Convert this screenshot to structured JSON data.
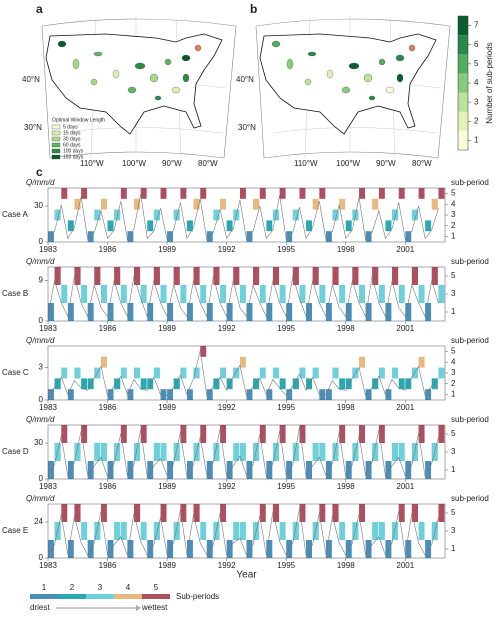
{
  "panel_labels": [
    "a",
    "b",
    "c"
  ],
  "map_lat_labels": [
    "40°N",
    "30°N"
  ],
  "map_lon_labels": [
    "110°W",
    "100°W",
    "90°W",
    "80°W"
  ],
  "map_legend": {
    "title": "Optimal Window Length",
    "items": [
      {
        "label": "5 days",
        "color": "#f7f9d8"
      },
      {
        "label": "15 days",
        "color": "#d9efb0"
      },
      {
        "label": "30 days",
        "color": "#a6d98a"
      },
      {
        "label": "60 days",
        "color": "#5fb65e"
      },
      {
        "label": "100 days",
        "color": "#2b8a45"
      },
      {
        "label": "150 days",
        "color": "#0b5a2c"
      }
    ]
  },
  "colorbar": {
    "title": "Number of sub-periods",
    "ticks": [
      1,
      2,
      3,
      4,
      5,
      6,
      7
    ],
    "colors": [
      "#fbfcd9",
      "#e2f2b4",
      "#b9e29a",
      "#86cb7c",
      "#52ad5f",
      "#25894a",
      "#0a5f31"
    ]
  },
  "subperiod_legend": {
    "title": "Sub-periods",
    "low": "driest",
    "high": "wettest",
    "items": [
      {
        "label": "1",
        "color": "#4a8fba"
      },
      {
        "label": "2",
        "color": "#2aa8b2"
      },
      {
        "label": "3",
        "color": "#6dd0da"
      },
      {
        "label": "4",
        "color": "#e7b97e"
      },
      {
        "label": "5",
        "color": "#ad4f5f"
      }
    ]
  },
  "x_label": "Year",
  "chart_data": [
    {
      "type": "subperiod",
      "name": "Case A",
      "y_label": "Q/mm/d",
      "y2_label": "sub-period",
      "xlim": [
        1983,
        2003
      ],
      "xticks": [
        1983,
        1986,
        1989,
        1992,
        1995,
        1998,
        2001
      ],
      "ylim": [
        0,
        45
      ],
      "yticks": [
        0,
        30
      ],
      "y2lim": [
        0.5,
        5.5
      ],
      "y2ticks": [
        1,
        2,
        3,
        4,
        5
      ],
      "x": [
        1983,
        1983.33,
        1983.67,
        1984,
        1984.33,
        1984.67,
        1985,
        1985.33,
        1985.67,
        1986,
        1986.33,
        1986.67,
        1987,
        1987.33,
        1987.67,
        1988,
        1988.33,
        1988.67,
        1989,
        1989.33,
        1989.67,
        1990,
        1990.33,
        1990.67,
        1991,
        1991.33,
        1991.67,
        1992,
        1992.33,
        1992.67,
        1993,
        1993.33,
        1993.67,
        1994,
        1994.33,
        1994.67,
        1995,
        1995.33,
        1995.67,
        1996,
        1996.33,
        1996.67,
        1997,
        1997.33,
        1997.67,
        1998,
        1998.33,
        1998.67,
        1999,
        1999.33,
        1999.67,
        2000,
        2000.33,
        2000.67,
        2001,
        2001.33,
        2001.67,
        2002,
        2002.33,
        2002.67
      ],
      "subperiods": [
        1,
        3,
        5,
        2,
        4,
        5,
        1,
        3,
        4,
        2,
        3,
        5,
        1,
        4,
        5,
        2,
        3,
        5,
        1,
        3,
        5,
        2,
        4,
        5,
        1,
        3,
        4,
        2,
        3,
        5,
        1,
        4,
        5,
        2,
        3,
        5,
        1,
        3,
        5,
        2,
        4,
        5,
        1,
        3,
        4,
        2,
        3,
        5,
        1,
        4,
        5,
        2,
        3,
        5,
        1,
        3,
        5,
        2,
        4,
        5
      ],
      "flow": [
        2,
        9,
        31,
        3,
        12,
        38,
        2,
        8,
        26,
        3,
        10,
        34,
        2,
        11,
        40,
        3,
        9,
        28,
        2,
        10,
        33,
        3,
        12,
        36,
        2,
        8,
        27,
        3,
        11,
        35,
        2,
        9,
        30,
        3,
        10,
        39,
        2,
        8,
        29,
        3,
        12,
        34,
        2,
        9,
        31,
        3,
        10,
        37,
        2,
        8,
        26,
        3,
        11,
        33,
        2,
        9,
        30,
        3,
        10,
        28
      ]
    },
    {
      "type": "subperiod",
      "name": "Case B",
      "y_label": "Q/mm/d",
      "y2_label": "sub-period",
      "xlim": [
        1983,
        2003
      ],
      "xticks": [
        1983,
        1986,
        1989,
        1992,
        1995,
        1998,
        2001
      ],
      "ylim": [
        0,
        12
      ],
      "yticks": [
        0,
        9
      ],
      "y2lim": [
        0,
        6
      ],
      "y2ticks": [
        1,
        3,
        5
      ],
      "x": [
        1983,
        1983.33,
        1983.67,
        1984,
        1984.33,
        1984.67,
        1985,
        1985.33,
        1985.67,
        1986,
        1986.33,
        1986.67,
        1987,
        1987.33,
        1987.67,
        1988,
        1988.33,
        1988.67,
        1989,
        1989.33,
        1989.67,
        1990,
        1990.33,
        1990.67,
        1991,
        1991.33,
        1991.67,
        1992,
        1992.33,
        1992.67,
        1993,
        1993.33,
        1993.67,
        1994,
        1994.33,
        1994.67,
        1995,
        1995.33,
        1995.67,
        1996,
        1996.33,
        1996.67,
        1997,
        1997.33,
        1997.67,
        1998,
        1998.33,
        1998.67,
        1999,
        1999.33,
        1999.67,
        2000,
        2000.33,
        2000.67,
        2001,
        2001.33,
        2001.67,
        2002,
        2002.33,
        2002.67
      ],
      "subperiods": [
        1,
        5,
        3,
        1,
        5,
        3,
        1,
        5,
        3,
        1,
        5,
        3,
        1,
        5,
        3,
        1,
        5,
        3,
        1,
        5,
        3,
        1,
        5,
        3,
        1,
        5,
        3,
        1,
        5,
        3,
        1,
        5,
        3,
        1,
        5,
        3,
        1,
        5,
        3,
        1,
        5,
        3,
        1,
        5,
        3,
        1,
        5,
        3,
        1,
        5,
        3,
        1,
        5,
        3,
        1,
        5,
        3,
        1,
        5,
        3
      ],
      "flow": [
        1,
        9,
        4,
        1,
        10,
        4,
        1,
        8,
        3,
        1,
        9,
        4,
        1,
        10,
        5,
        1,
        9,
        4,
        1,
        8,
        3,
        1,
        9,
        4,
        1,
        10,
        4,
        1,
        9,
        3,
        1,
        8,
        4,
        1,
        9,
        4,
        1,
        10,
        5,
        1,
        9,
        4,
        1,
        8,
        3,
        1,
        9,
        4,
        1,
        10,
        4,
        1,
        9,
        3,
        1,
        8,
        4,
        1,
        9,
        4
      ]
    },
    {
      "type": "subperiod",
      "name": "Case C",
      "y_label": "Q/mm/d",
      "y2_label": "sub-period",
      "xlim": [
        1983,
        2003
      ],
      "xticks": [
        1983,
        1986,
        1989,
        1992,
        1995,
        1998,
        2001
      ],
      "ylim": [
        0,
        5
      ],
      "yticks": [
        0,
        3
      ],
      "y2lim": [
        0.5,
        5.5
      ],
      "y2ticks": [
        1,
        2,
        3,
        4,
        5
      ],
      "x": [
        1983,
        1983.33,
        1983.67,
        1984,
        1984.33,
        1984.67,
        1985,
        1985.33,
        1985.67,
        1986,
        1986.33,
        1986.67,
        1987,
        1987.33,
        1987.67,
        1988,
        1988.33,
        1988.67,
        1989,
        1989.33,
        1989.67,
        1990,
        1990.33,
        1990.67,
        1991,
        1991.33,
        1991.67,
        1992,
        1992.33,
        1992.67,
        1993,
        1993.33,
        1993.67,
        1994,
        1994.33,
        1994.67,
        1995,
        1995.33,
        1995.67,
        1996,
        1996.33,
        1996.67,
        1997,
        1997.33,
        1997.67,
        1998,
        1998.33,
        1998.67,
        1999,
        1999.33,
        1999.67,
        2000,
        2000.33,
        2000.67,
        2001,
        2001.33,
        2001.67,
        2002,
        2002.33,
        2002.67
      ],
      "subperiods": [
        1,
        2,
        3,
        1,
        3,
        2,
        2,
        3,
        4,
        1,
        2,
        3,
        1,
        3,
        2,
        2,
        3,
        1,
        1,
        2,
        3,
        1,
        3,
        5,
        1,
        2,
        3,
        2,
        3,
        4,
        1,
        2,
        3,
        1,
        3,
        2,
        1,
        2,
        3,
        2,
        3,
        1,
        1,
        3,
        2,
        2,
        3,
        4,
        1,
        2,
        3,
        1,
        3,
        2,
        2,
        3,
        4,
        1,
        2,
        3
      ],
      "flow": [
        0.4,
        1.2,
        2.1,
        0.5,
        1.8,
        1.1,
        0.9,
        2.0,
        3.1,
        0.4,
        1.3,
        2.2,
        0.5,
        1.9,
        1.0,
        0.9,
        2.1,
        0.5,
        0.4,
        1.2,
        2.3,
        0.5,
        2.0,
        4.6,
        0.4,
        1.3,
        2.1,
        0.9,
        2.2,
        3.2,
        0.4,
        1.2,
        2.0,
        0.5,
        1.9,
        1.1,
        0.4,
        1.3,
        2.4,
        0.9,
        2.1,
        0.5,
        0.5,
        1.8,
        1.0,
        0.9,
        2.0,
        3.0,
        0.4,
        1.2,
        2.2,
        0.5,
        1.9,
        1.1,
        0.9,
        2.1,
        3.1,
        0.4,
        1.3,
        2.0
      ]
    },
    {
      "type": "subperiod",
      "name": "Case D",
      "y_label": "Q/mm/d",
      "y2_label": "sub-period",
      "xlim": [
        1983,
        2003
      ],
      "xticks": [
        1983,
        1986,
        1989,
        1992,
        1995,
        1998,
        2001
      ],
      "ylim": [
        0,
        45
      ],
      "yticks": [
        0,
        30
      ],
      "y2lim": [
        0,
        6
      ],
      "y2ticks": [
        1,
        3,
        5
      ],
      "x": [
        1983,
        1983.33,
        1983.67,
        1984,
        1984.33,
        1984.67,
        1985,
        1985.33,
        1985.67,
        1986,
        1986.33,
        1986.67,
        1987,
        1987.33,
        1987.67,
        1988,
        1988.33,
        1988.67,
        1989,
        1989.33,
        1989.67,
        1990,
        1990.33,
        1990.67,
        1991,
        1991.33,
        1991.67,
        1992,
        1992.33,
        1992.67,
        1993,
        1993.33,
        1993.67,
        1994,
        1994.33,
        1994.67,
        1995,
        1995.33,
        1995.67,
        1996,
        1996.33,
        1996.67,
        1997,
        1997.33,
        1997.67,
        1998,
        1998.33,
        1998.67,
        1999,
        1999.33,
        1999.67,
        2000,
        2000.33,
        2000.67,
        2001,
        2001.33,
        2001.67,
        2002,
        2002.33,
        2002.67
      ],
      "subperiods": [
        1,
        3,
        5,
        1,
        3,
        5,
        1,
        3,
        3,
        1,
        3,
        5,
        1,
        3,
        5,
        1,
        3,
        3,
        1,
        3,
        5,
        1,
        3,
        5,
        1,
        3,
        5,
        1,
        3,
        3,
        1,
        3,
        5,
        1,
        3,
        5,
        1,
        3,
        5,
        1,
        3,
        3,
        1,
        3,
        5,
        1,
        3,
        5,
        1,
        3,
        5,
        1,
        3,
        3,
        1,
        3,
        5,
        1,
        3,
        5
      ],
      "flow": [
        3,
        12,
        36,
        2,
        14,
        40,
        3,
        11,
        18,
        2,
        13,
        38,
        3,
        12,
        41,
        2,
        11,
        17,
        3,
        13,
        39,
        2,
        12,
        35,
        3,
        14,
        42,
        2,
        11,
        19,
        3,
        12,
        37,
        2,
        13,
        40,
        3,
        12,
        43,
        2,
        11,
        18,
        3,
        13,
        39,
        2,
        12,
        36,
        3,
        14,
        41,
        2,
        11,
        18,
        3,
        12,
        38,
        2,
        13,
        35
      ]
    },
    {
      "type": "subperiod",
      "name": "Case E",
      "y_label": "Q/mm/d",
      "y2_label": "sub-period",
      "xlim": [
        1983,
        2003
      ],
      "xticks": [
        1983,
        1986,
        1989,
        1992,
        1995,
        1998,
        2001
      ],
      "ylim": [
        0,
        36
      ],
      "yticks": [
        0,
        24
      ],
      "y2lim": [
        0,
        6
      ],
      "y2ticks": [
        1,
        3,
        5
      ],
      "x": [
        1983,
        1983.33,
        1983.67,
        1984,
        1984.33,
        1984.67,
        1985,
        1985.33,
        1985.67,
        1986,
        1986.33,
        1986.67,
        1987,
        1987.33,
        1987.67,
        1988,
        1988.33,
        1988.67,
        1989,
        1989.33,
        1989.67,
        1990,
        1990.33,
        1990.67,
        1991,
        1991.33,
        1991.67,
        1992,
        1992.33,
        1992.67,
        1993,
        1993.33,
        1993.67,
        1994,
        1994.33,
        1994.67,
        1995,
        1995.33,
        1995.67,
        1996,
        1996.33,
        1996.67,
        1997,
        1997.33,
        1997.67,
        1998,
        1998.33,
        1998.67,
        1999,
        1999.33,
        1999.67,
        2000,
        2000.33,
        2000.67,
        2001,
        2001.33,
        2001.67,
        2002,
        2002.33,
        2002.67
      ],
      "subperiods": [
        1,
        3,
        5,
        1,
        5,
        3,
        1,
        3,
        5,
        1,
        3,
        3,
        1,
        5,
        3,
        1,
        3,
        5,
        1,
        3,
        5,
        1,
        5,
        3,
        1,
        3,
        5,
        1,
        3,
        3,
        1,
        3,
        5,
        1,
        5,
        3,
        1,
        3,
        5,
        1,
        3,
        5,
        1,
        5,
        3,
        1,
        3,
        5,
        1,
        3,
        3,
        1,
        3,
        5,
        1,
        5,
        3,
        1,
        3,
        5
      ],
      "flow": [
        2,
        9,
        29,
        2,
        28,
        10,
        2,
        10,
        31,
        2,
        9,
        14,
        2,
        30,
        11,
        2,
        9,
        27,
        2,
        10,
        32,
        2,
        29,
        10,
        2,
        9,
        30,
        2,
        10,
        13,
        2,
        9,
        28,
        2,
        31,
        11,
        2,
        10,
        33,
        2,
        9,
        30,
        2,
        28,
        10,
        2,
        10,
        29,
        2,
        9,
        14,
        2,
        10,
        31,
        2,
        30,
        10,
        2,
        9,
        27
      ]
    }
  ]
}
